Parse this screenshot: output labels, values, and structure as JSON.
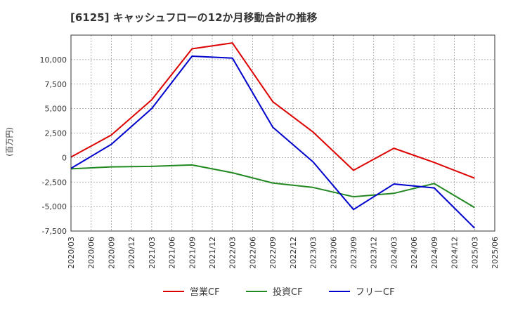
{
  "chart_data": {
    "type": "line",
    "title": "[6125]  キャッシュフローの12か月移動合計の推移",
    "ylabel": "(百万円)",
    "xlabel": "",
    "ylim": [
      -7500,
      12500
    ],
    "yticks": [
      10000,
      7500,
      5000,
      2500,
      0,
      -2500,
      -5000,
      -7500
    ],
    "ytick_labels": [
      "10,000",
      "7,500",
      "5,000",
      "2,500",
      "0",
      "-2,500",
      "-5,000",
      "-7,500"
    ],
    "x_labels": [
      "2020/03",
      "2020/06",
      "2020/09",
      "2020/12",
      "2021/03",
      "2021/06",
      "2021/09",
      "2021/12",
      "2022/03",
      "2022/06",
      "2022/09",
      "2022/12",
      "2023/03",
      "2023/06",
      "2023/09",
      "2023/12",
      "2024/03",
      "2024/06",
      "2024/09",
      "2024/12",
      "2025/03",
      "2025/06"
    ],
    "grid": true,
    "legend_position": "bottom",
    "series": [
      {
        "name": "営業CF",
        "color": "#dd0000",
        "x": [
          "2020/03",
          "2020/09",
          "2021/03",
          "2021/09",
          "2022/03",
          "2022/09",
          "2023/03",
          "2023/09",
          "2024/03",
          "2024/09",
          "2025/03"
        ],
        "values": [
          50,
          2300,
          5900,
          11100,
          11700,
          5700,
          2600,
          -1300,
          950,
          -500,
          -2100
        ]
      },
      {
        "name": "投資CF",
        "color": "#228822",
        "x": [
          "2020/03",
          "2020/09",
          "2021/03",
          "2021/09",
          "2022/03",
          "2022/09",
          "2023/03",
          "2023/09",
          "2024/03",
          "2024/09",
          "2025/03"
        ],
        "values": [
          -1150,
          -950,
          -900,
          -750,
          -1550,
          -2600,
          -3050,
          -4000,
          -3650,
          -2650,
          -5100
        ]
      },
      {
        "name": "フリーCF",
        "color": "#0000cc",
        "x": [
          "2020/03",
          "2020/09",
          "2021/03",
          "2021/09",
          "2022/03",
          "2022/09",
          "2023/03",
          "2023/09",
          "2024/03",
          "2024/09",
          "2025/03"
        ],
        "values": [
          -1100,
          1350,
          5000,
          10350,
          10150,
          3100,
          -450,
          -5300,
          -2700,
          -3100,
          -7200
        ]
      }
    ]
  }
}
